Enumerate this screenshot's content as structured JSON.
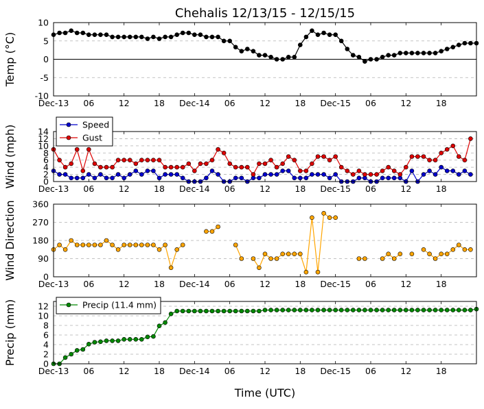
{
  "figure": {
    "title": "Chehalis 12/13/15 - 12/15/15",
    "xlabel": "Time (UTC)",
    "xtick_labels": [
      "Dec-13",
      "06",
      "12",
      "18",
      "Dec-14",
      "06",
      "12",
      "18",
      "Dec-15",
      "06",
      "12",
      "18"
    ]
  },
  "chart_data": [
    {
      "type": "line",
      "ylabel": "Temp (°C)",
      "ylim": [
        -10,
        10
      ],
      "yticks": [
        -10,
        -5,
        0,
        5,
        10
      ],
      "x_unit": "hours from 12/13/15 00:00 UTC",
      "x_start": 0,
      "x_step": 1,
      "zero_line": true,
      "grid": "horizontal dashed",
      "series": [
        {
          "color": "#000000",
          "values": [
            6.7,
            7.2,
            7.2,
            7.8,
            7.2,
            7.2,
            6.7,
            6.7,
            6.7,
            6.7,
            6.1,
            6.1,
            6.1,
            6.1,
            6.1,
            6.1,
            5.6,
            6.1,
            5.6,
            6.1,
            6.1,
            6.7,
            7.2,
            7.2,
            6.7,
            6.7,
            6.1,
            6.1,
            6.1,
            5.0,
            5.0,
            3.3,
            2.2,
            2.8,
            2.2,
            1.1,
            1.1,
            0.6,
            0.0,
            0.0,
            0.6,
            0.6,
            3.9,
            6.1,
            7.8,
            6.7,
            7.2,
            6.7,
            6.7,
            5.0,
            2.8,
            1.1,
            0.6,
            -0.6,
            0.0,
            0.0,
            0.6,
            1.1,
            1.1,
            1.7,
            1.7,
            1.7,
            1.7,
            1.7,
            1.7,
            1.7,
            2.2,
            2.8,
            3.3,
            3.9,
            4.4,
            4.4,
            4.4
          ]
        }
      ]
    },
    {
      "type": "line",
      "ylabel": "Wind (mph)",
      "ylim": [
        0,
        14
      ],
      "yticks": [
        0,
        2,
        4,
        6,
        8,
        10,
        12,
        14
      ],
      "x_unit": "hours from 12/13/15 00:00 UTC",
      "x_start": 0,
      "x_step": 1,
      "grid": "horizontal dashed",
      "legend_position": "top-left",
      "series": [
        {
          "name": "Speed",
          "color": "#0000cc",
          "values": [
            3,
            2,
            2,
            1,
            1,
            1,
            2,
            1,
            2,
            1,
            1,
            2,
            1,
            2,
            3,
            2,
            3,
            3,
            1,
            2,
            2,
            2,
            1,
            0,
            0,
            0,
            1,
            3,
            2,
            0,
            0,
            1,
            1,
            0,
            1,
            1,
            2,
            2,
            2,
            3,
            3,
            1,
            1,
            1,
            2,
            2,
            2,
            1,
            2,
            0,
            0,
            0,
            1,
            1,
            0,
            0,
            1,
            1,
            1,
            1,
            0,
            3,
            0,
            2,
            3,
            2,
            4,
            3,
            3,
            2,
            3,
            2
          ]
        },
        {
          "name": "Gust",
          "color": "#dd0000",
          "values": [
            9,
            6,
            4,
            5,
            9,
            3,
            9,
            5,
            4,
            4,
            4,
            6,
            6,
            6,
            5,
            6,
            6,
            6,
            6,
            4,
            4,
            4,
            4,
            5,
            3,
            5,
            5,
            6,
            9,
            8,
            5,
            4,
            4,
            4,
            2,
            5,
            5,
            6,
            4,
            5,
            7,
            6,
            3,
            3,
            5,
            7,
            7,
            6,
            7,
            4,
            3,
            2,
            3,
            2,
            2,
            2,
            3,
            4,
            3,
            2,
            4,
            7,
            7,
            7,
            6,
            6,
            8,
            9,
            10,
            7,
            6,
            12
          ]
        }
      ]
    },
    {
      "type": "scatter",
      "ylabel": "Wind Direction",
      "ylim": [
        0,
        360
      ],
      "yticks": [
        0,
        90,
        180,
        270,
        360
      ],
      "x_unit": "hours from 12/13/15 00:00 UTC",
      "grid": "horizontal dashed",
      "connected": true,
      "series": [
        {
          "color": "#ffa500",
          "points": [
            [
              0,
              135
            ],
            [
              1,
              158
            ],
            [
              2,
              135
            ],
            [
              3,
              180
            ],
            [
              4,
              158
            ],
            [
              5,
              158
            ],
            [
              6,
              158
            ],
            [
              7,
              158
            ],
            [
              8,
              158
            ],
            [
              9,
              180
            ],
            [
              10,
              158
            ],
            [
              11,
              135
            ],
            [
              12,
              158
            ],
            [
              13,
              158
            ],
            [
              14,
              158
            ],
            [
              15,
              158
            ],
            [
              16,
              158
            ],
            [
              17,
              158
            ],
            [
              18,
              135
            ],
            [
              19,
              158
            ],
            [
              20,
              45
            ],
            [
              21,
              135
            ],
            [
              22,
              158
            ],
            [
              26,
              225
            ],
            [
              27,
              225
            ],
            [
              28,
              248
            ],
            [
              31,
              158
            ],
            [
              32,
              90
            ],
            [
              34,
              90
            ],
            [
              35,
              45
            ],
            [
              36,
              113
            ],
            [
              37,
              90
            ],
            [
              38,
              90
            ],
            [
              39,
              113
            ],
            [
              40,
              113
            ],
            [
              41,
              113
            ],
            [
              42,
              113
            ],
            [
              43,
              23
            ],
            [
              44,
              293
            ],
            [
              45,
              23
            ],
            [
              46,
              315
            ],
            [
              47,
              293
            ],
            [
              48,
              293
            ],
            [
              52,
              90
            ],
            [
              53,
              90
            ],
            [
              56,
              90
            ],
            [
              57,
              113
            ],
            [
              58,
              90
            ],
            [
              59,
              113
            ],
            [
              61,
              113
            ],
            [
              63,
              135
            ],
            [
              64,
              113
            ],
            [
              65,
              90
            ],
            [
              66,
              113
            ],
            [
              67,
              113
            ],
            [
              68,
              135
            ],
            [
              69,
              158
            ],
            [
              70,
              135
            ],
            [
              71,
              135
            ]
          ]
        }
      ]
    },
    {
      "type": "line",
      "ylabel": "Precip (mm)",
      "ylim": [
        0,
        13
      ],
      "yticks": [
        0,
        2,
        4,
        6,
        8,
        10,
        12
      ],
      "x_unit": "hours from 12/13/15 00:00 UTC",
      "x_start": 0,
      "x_step": 1,
      "grid": "horizontal dashed",
      "legend_position": "top-left",
      "series": [
        {
          "name": "Precip (11.4 mm)",
          "color": "#008800",
          "values": [
            0.0,
            0.0,
            1.3,
            2.0,
            2.8,
            3.0,
            4.1,
            4.5,
            4.6,
            4.8,
            4.8,
            4.8,
            5.1,
            5.1,
            5.1,
            5.1,
            5.6,
            5.7,
            7.9,
            8.6,
            10.4,
            11.0,
            11.0,
            11.0,
            11.0,
            11.0,
            11.0,
            11.0,
            11.0,
            11.0,
            11.0,
            11.0,
            11.0,
            11.0,
            11.0,
            11.0,
            11.2,
            11.2,
            11.2,
            11.2,
            11.2,
            11.2,
            11.2,
            11.2,
            11.2,
            11.2,
            11.2,
            11.2,
            11.2,
            11.2,
            11.2,
            11.2,
            11.2,
            11.2,
            11.2,
            11.2,
            11.2,
            11.2,
            11.2,
            11.2,
            11.2,
            11.2,
            11.2,
            11.2,
            11.2,
            11.2,
            11.2,
            11.2,
            11.2,
            11.2,
            11.2,
            11.2,
            11.4
          ]
        }
      ]
    }
  ]
}
